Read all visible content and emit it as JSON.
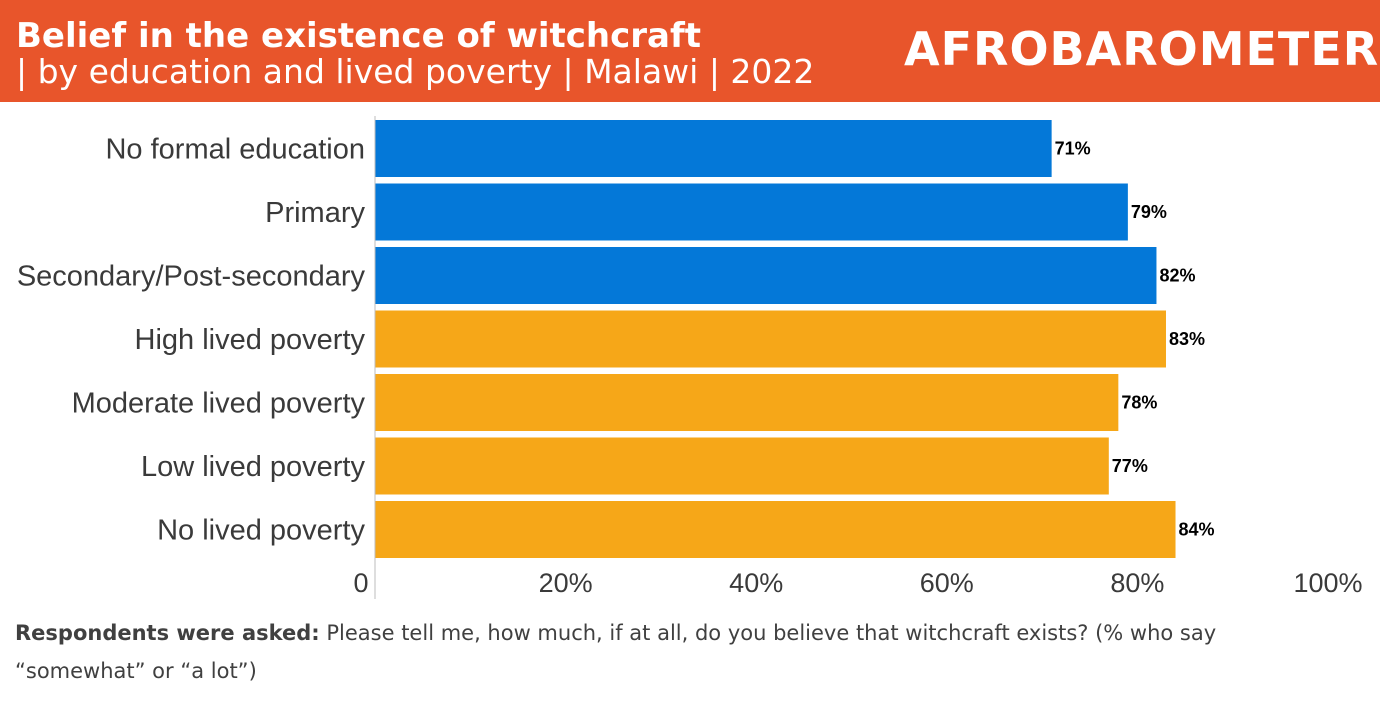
{
  "header": {
    "title": "Belief in the existence of witchcraft",
    "subtitle": "| by education and lived poverty | Malawi | 2022",
    "logo_text": "AFROBAROMETER"
  },
  "colors": {
    "header_bg": "#e8552b",
    "education": "#0478d8",
    "poverty": "#f6a718"
  },
  "chart_data": {
    "type": "bar",
    "orientation": "horizontal",
    "categories": [
      "No formal education",
      "Primary",
      "Secondary/Post-secondary",
      "High lived poverty",
      "Moderate lived poverty",
      "Low lived poverty",
      "No lived poverty"
    ],
    "values": [
      71,
      79,
      82,
      83,
      78,
      77,
      84
    ],
    "value_labels": [
      "71%",
      "79%",
      "82%",
      "83%",
      "78%",
      "77%",
      "84%"
    ],
    "groups": [
      "education",
      "education",
      "education",
      "poverty",
      "poverty",
      "poverty",
      "poverty"
    ],
    "xlim": [
      0,
      100
    ],
    "x_ticks": [
      0,
      20,
      40,
      60,
      80,
      100
    ],
    "x_tick_labels": [
      "0",
      "20%",
      "40%",
      "60%",
      "80%",
      "100%"
    ],
    "grid": false,
    "legend": "none"
  },
  "footer": {
    "label": "Respondents were asked:",
    "question": " Please tell me, how much, if at all, do you believe that witchcraft exists?  (% who say “somewhat” or “a lot”)"
  }
}
